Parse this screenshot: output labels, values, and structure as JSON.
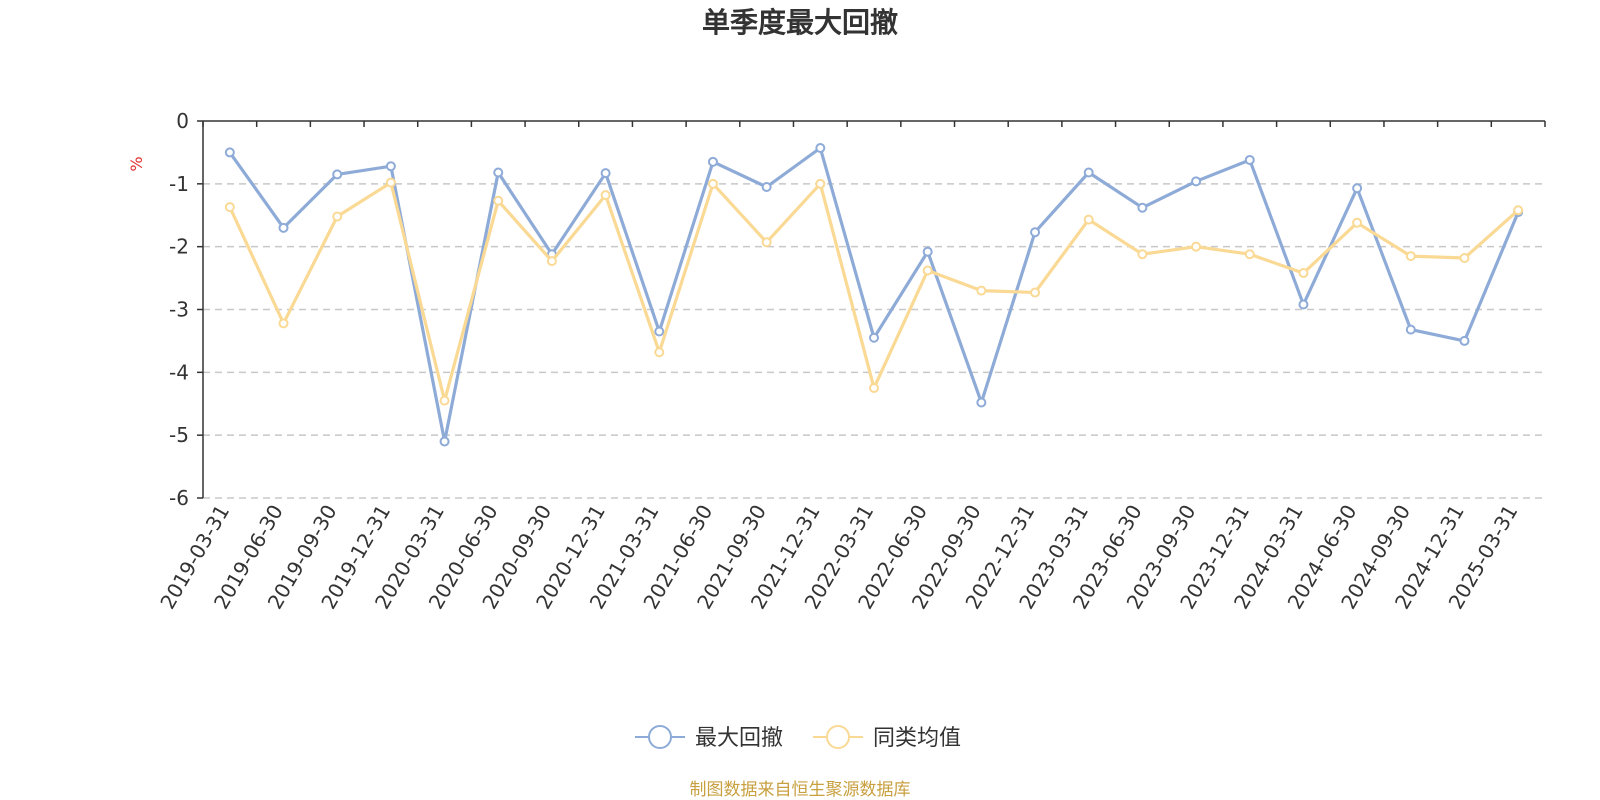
{
  "chart_data": {
    "type": "line",
    "title": "单季度最大回撤",
    "ylabel": "%",
    "ylim": [
      -6,
      0
    ],
    "yticks": [
      0,
      -1,
      -2,
      -3,
      -4,
      -5,
      -6
    ],
    "grid": "horizontal-dashed",
    "legend_position": "bottom-center",
    "categories": [
      "2019-03-31",
      "2019-06-30",
      "2019-09-30",
      "2019-12-31",
      "2020-03-31",
      "2020-06-30",
      "2020-09-30",
      "2020-12-31",
      "2021-03-31",
      "2021-06-30",
      "2021-09-30",
      "2021-12-31",
      "2022-03-31",
      "2022-06-30",
      "2022-09-30",
      "2022-12-31",
      "2023-03-31",
      "2023-06-30",
      "2023-09-30",
      "2023-12-31",
      "2024-03-31",
      "2024-06-30",
      "2024-09-30",
      "2024-12-31",
      "2025-03-31"
    ],
    "series": [
      {
        "name": "最大回撤",
        "color": "#8eabd8",
        "values": [
          -0.5,
          -1.7,
          -0.85,
          -0.72,
          -5.1,
          -0.82,
          -2.12,
          -0.83,
          -3.35,
          -0.65,
          -1.05,
          -0.43,
          -3.45,
          -2.08,
          -4.48,
          -1.77,
          -0.82,
          -1.38,
          -0.96,
          -0.62,
          -2.92,
          -1.07,
          -3.32,
          -3.5,
          -1.45
        ]
      },
      {
        "name": "同类均值",
        "color": "#fad994",
        "values": [
          -1.37,
          -3.22,
          -1.52,
          -0.98,
          -4.45,
          -1.27,
          -2.23,
          -1.18,
          -3.68,
          -1.0,
          -1.93,
          -1.0,
          -4.25,
          -2.38,
          -2.7,
          -2.73,
          -1.57,
          -2.12,
          -2.0,
          -2.12,
          -2.42,
          -1.62,
          -2.15,
          -2.18,
          -1.42
        ]
      }
    ],
    "source": "制图数据来自恒生聚源数据库",
    "source_color": "#c8a040",
    "unit_color": "#e03030"
  }
}
